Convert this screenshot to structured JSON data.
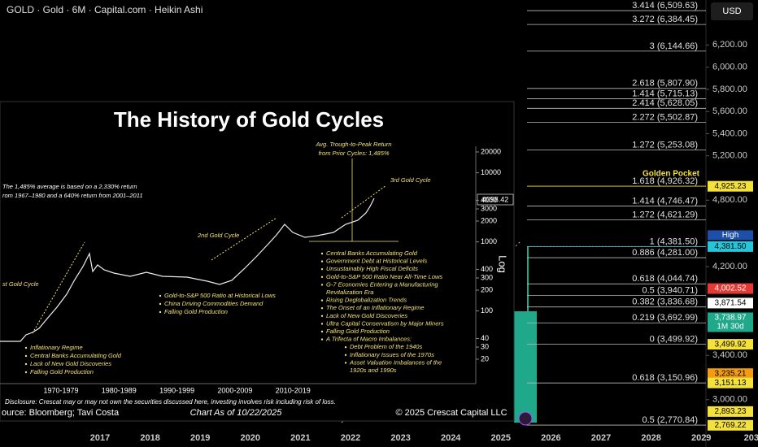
{
  "header": {
    "title": "GOLD · Gold · 6M · Capital.com · Heikin Ashi",
    "currency": "USD"
  },
  "price_axis": {
    "ticks": [
      {
        "value": 6200,
        "label": "6,200.00"
      },
      {
        "value": 6000,
        "label": "6,000.00"
      },
      {
        "value": 5800,
        "label": "5,800.00"
      },
      {
        "value": 5600,
        "label": "5,600.00"
      },
      {
        "value": 5400,
        "label": "5,400.00"
      },
      {
        "value": 5200,
        "label": "5,200.00"
      },
      {
        "value": 4800,
        "label": "4,800.00"
      },
      {
        "value": 4200,
        "label": "4,200.00"
      },
      {
        "value": 3400,
        "label": "3,400.00"
      },
      {
        "value": 3000,
        "label": "3,000.00"
      }
    ]
  },
  "fib_levels": [
    {
      "label": "3.414 (6,509.63)",
      "price": 6509.63
    },
    {
      "label": "3.272 (6,384.45)",
      "price": 6384.45
    },
    {
      "label": "3 (6,144.66)",
      "price": 6144.66
    },
    {
      "label": "2.618 (5,807.90)",
      "price": 5807.9
    },
    {
      "label": "1.414 (5,715.13)",
      "price": 5715.13
    },
    {
      "label": "2.414 (5,628.05)",
      "price": 5628.05
    },
    {
      "label": "2.272 (5,502.87)",
      "price": 5502.87
    },
    {
      "label": "1.272 (5,253.08)",
      "price": 5253.08
    },
    {
      "label": "1.618 (4,926.32)",
      "price": 4926.32
    },
    {
      "label": "1.414 (4,746.47)",
      "price": 4746.47
    },
    {
      "label": "1.272 (4,621.29)",
      "price": 4621.29
    },
    {
      "label": "1 (4,381.50)",
      "price": 4381.5
    },
    {
      "label": "0.886 (4,281.00)",
      "price": 4281.0
    },
    {
      "label": "0.618 (4,044.74)",
      "price": 4044.74
    },
    {
      "label": "0.5 (3,940.71)",
      "price": 3940.71
    },
    {
      "label": "0.382 (3,836.68)",
      "price": 3836.68
    },
    {
      "label": "0.219 (3,692.99)",
      "price": 3692.99
    },
    {
      "label": "0 (3,499.92)",
      "price": 3499.92
    },
    {
      "label": "0.618 (3,150.96)",
      "price": 3150.96
    },
    {
      "label": "0.5 (2,770.84)",
      "price": 2770.84
    }
  ],
  "golden_pocket": "Golden Pocket",
  "price_tags": [
    {
      "label": "4,925.23",
      "price": 4925.23,
      "color": "#f5e13b"
    },
    {
      "label": "4,381.50",
      "price": 4381.5,
      "color": "#26c6da",
      "note": "High"
    },
    {
      "label": "4,002.52",
      "price": 4002.52,
      "color": "#e53935"
    },
    {
      "label": "3,871.54",
      "price": 3871.54,
      "color": "#ffffff"
    },
    {
      "label": "3,738.97",
      "price": 3738.97,
      "color": "#1fa88a",
      "note": "1M 30d"
    },
    {
      "label": "3,499.92",
      "price": 3499.92,
      "color": "#f5e13b"
    },
    {
      "label": "3,235.21",
      "price": 3235.21,
      "color": "#f39c12"
    },
    {
      "label": "3,151.13",
      "price": 3151.13,
      "color": "#f5e13b"
    },
    {
      "label": "2,893.23",
      "price": 2893.23,
      "color": "#f5e13b"
    },
    {
      "label": "2,769.22",
      "price": 2769.22,
      "color": "#f5e13b"
    }
  ],
  "time_axis": [
    "2017",
    "2018",
    "2019",
    "2020",
    "2021",
    "2022",
    "2023",
    "2024",
    "2025",
    "2026",
    "2027",
    "2028",
    "2029",
    "203"
  ],
  "inset": {
    "title": "The History of Gold Cycles",
    "avg_return": [
      "Avg. Trough-to-Peak Return",
      "from Prior Cycles: 1,485%"
    ],
    "note": [
      "The 1,485% average is based on a 2,330% return",
      "rom 1967–1980 and a 640% return from 2001–2011"
    ],
    "cycles": [
      "st Gold Cycle",
      "2nd Gold Cycle",
      "3rd Gold Cycle"
    ],
    "last_price": "4098.42",
    "scale_label": "Log",
    "log_ticks": [
      20000,
      10000,
      4000,
      3000,
      2000,
      1000,
      400,
      300,
      200,
      100,
      40,
      30,
      20
    ],
    "decades": [
      "1970-1979",
      "1980-1989",
      "1990-1999",
      "2000-2009",
      "2010-2019"
    ],
    "bullets_1": [
      "Inflationary Regime",
      "Central Banks Accumulating Gold",
      "Lack of New Gold Discoveries",
      "Falling Gold Production"
    ],
    "bullets_2": [
      "Gold-to-S&P 500 Ratio at Historical Lows",
      "China Driving Commodities Demand",
      "Falling Gold Production"
    ],
    "bullets_3": [
      {
        "lines": [
          "Central Banks Accumulating Gold"
        ]
      },
      {
        "lines": [
          "Government Debt at Historical Levels"
        ]
      },
      {
        "lines": [
          "Unsustainably High Fiscal Deficits"
        ]
      },
      {
        "lines": [
          "Gold-to-S&P 500 Ratio Near All-Time Lows"
        ]
      },
      {
        "lines": [
          "G-7 Economies Entering a Manufacturing",
          "Revitalization Era"
        ]
      },
      {
        "lines": [
          "Rising Deglobalization Trends"
        ]
      },
      {
        "lines": [
          "The Onset of an Inflationary Regime"
        ]
      },
      {
        "lines": [
          "Lack of New Gold Discoveries"
        ]
      },
      {
        "lines": [
          "Ultra Capital Conservatism by Major Miners"
        ]
      },
      {
        "lines": [
          "Falling Gold Production"
        ]
      },
      {
        "lines": [
          "A Trifecta of Macro Imbalances:"
        ]
      }
    ],
    "sub_bullets": [
      {
        "lines": [
          "Debt Problem of the 1940s"
        ]
      },
      {
        "lines": [
          "Inflationary Issues of the 1970s"
        ]
      },
      {
        "lines": [
          "Asset Valuation Imbalances of the",
          "1920s and 1990s"
        ]
      }
    ],
    "disclosure": "Disclosure: Crescat may or may not own the securities discussed here, investing involves risk including risk of loss.",
    "source": "ource: Bloomberg; Tavi Costa",
    "as_of": "Chart As of 10/22/2025",
    "copyright": "© 2025 Crescat Capital LLC"
  }
}
